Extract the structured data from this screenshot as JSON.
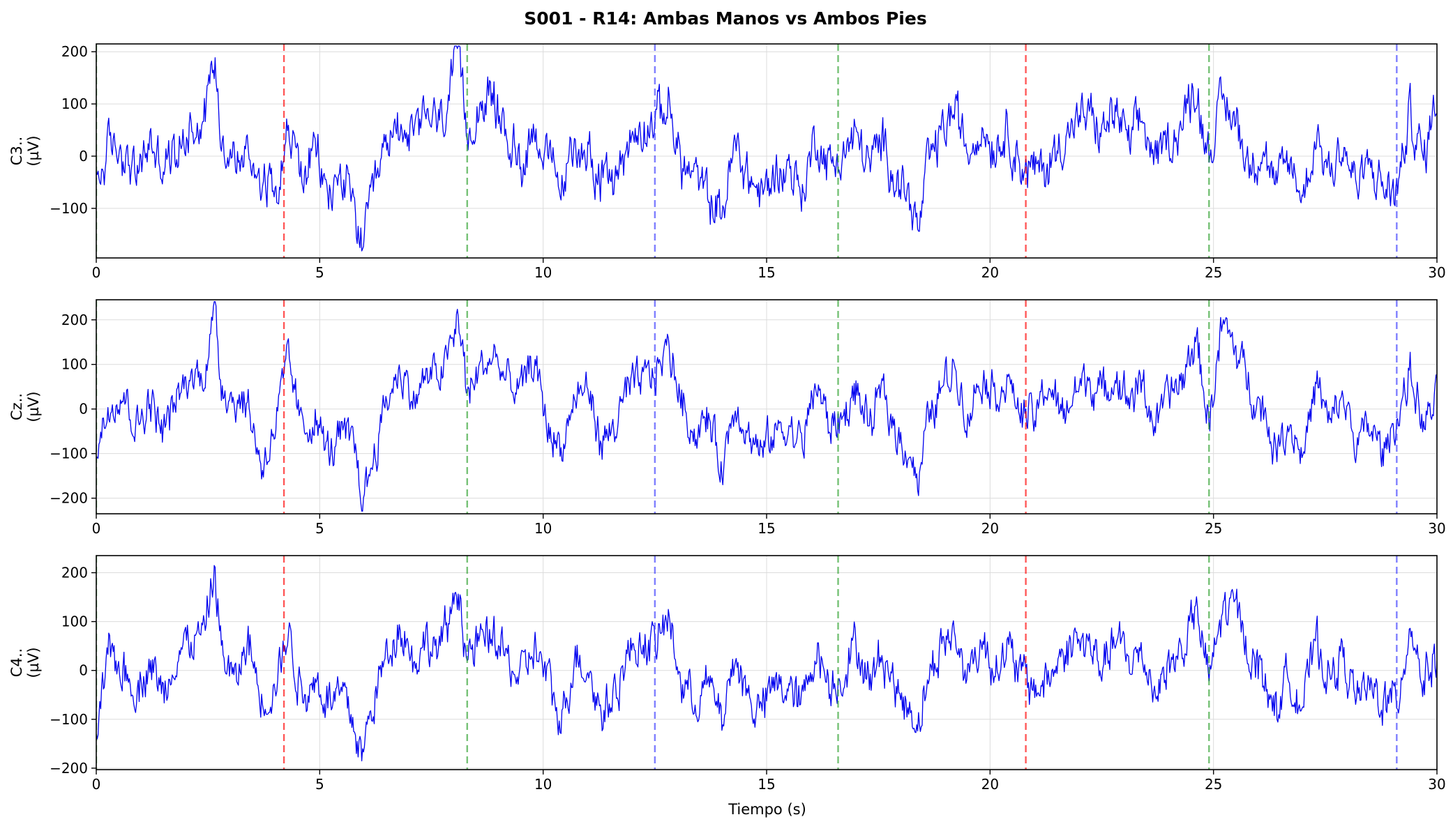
{
  "title": "S001 - R14: Ambas Manos vs Ambos Pies",
  "xlabel": "Tiempo (s)",
  "chart_data": [
    {
      "type": "line",
      "ylabel_channel": "C3..",
      "ylabel_unit": "(µV)",
      "xlim": [
        0,
        30
      ],
      "ylim": [
        -195,
        215
      ],
      "x_ticks": [
        "0",
        "5",
        "10",
        "15",
        "20",
        "25",
        "30"
      ],
      "y_ticks": [
        {
          "value": 200,
          "label": "200"
        },
        {
          "value": 100,
          "label": "100"
        },
        {
          "value": 0,
          "label": "0"
        },
        {
          "value": -100,
          "label": "−100"
        }
      ],
      "grid": true,
      "markers": [
        {
          "x": 0.0,
          "color": "#2ca02c"
        },
        {
          "x": 4.2,
          "color": "#ff0000"
        },
        {
          "x": 8.3,
          "color": "#2ca02c"
        },
        {
          "x": 12.5,
          "color": "#3b3bff"
        },
        {
          "x": 16.6,
          "color": "#2ca02c"
        },
        {
          "x": 20.8,
          "color": "#ff0000"
        },
        {
          "x": 24.9,
          "color": "#2ca02c"
        },
        {
          "x": 29.1,
          "color": "#3b3bff"
        }
      ],
      "series": [
        {
          "color": "#0000ee",
          "x": [
            0,
            0.3,
            0.6,
            0.9,
            1.2,
            1.5,
            1.8,
            2.1,
            2.4,
            2.55,
            2.65,
            2.8,
            3.1,
            3.4,
            3.7,
            4.0,
            4.3,
            4.6,
            4.9,
            5.2,
            5.5,
            5.8,
            5.95,
            6.2,
            6.5,
            6.8,
            7.1,
            7.4,
            7.7,
            8.0,
            8.1,
            8.3,
            8.6,
            8.9,
            9.2,
            9.5,
            9.8,
            10.1,
            10.4,
            10.7,
            11.0,
            11.3,
            11.6,
            11.9,
            12.2,
            12.5,
            12.8,
            13.1,
            13.4,
            13.7,
            14.0,
            14.3,
            14.6,
            14.9,
            15.2,
            15.5,
            15.8,
            16.1,
            16.4,
            16.7,
            17.0,
            17.3,
            17.6,
            17.9,
            18.2,
            18.4,
            18.6,
            18.9,
            19.2,
            19.5,
            19.8,
            20.1,
            20.4,
            20.7,
            21.0,
            21.3,
            21.6,
            21.9,
            22.2,
            22.5,
            22.8,
            23.1,
            23.4,
            23.7,
            24.0,
            24.3,
            24.6,
            24.7,
            24.9,
            25.2,
            25.5,
            25.8,
            26.1,
            26.4,
            26.7,
            27.0,
            27.3,
            27.6,
            27.9,
            28.2,
            28.5,
            28.8,
            29.1,
            29.4,
            29.7,
            30.0
          ],
          "values": [
            -60,
            20,
            10,
            -40,
            30,
            -20,
            10,
            60,
            70,
            150,
            190,
            40,
            -10,
            0,
            -40,
            -60,
            50,
            -40,
            10,
            -80,
            -30,
            -120,
            -170,
            -80,
            20,
            70,
            30,
            80,
            60,
            150,
            190,
            40,
            110,
            100,
            40,
            -20,
            60,
            -10,
            -60,
            10,
            20,
            -50,
            -40,
            20,
            60,
            70,
            100,
            -20,
            -40,
            -80,
            -110,
            20,
            -40,
            -80,
            -30,
            -20,
            -70,
            40,
            -20,
            0,
            40,
            -20,
            30,
            -40,
            -80,
            -150,
            -20,
            40,
            90,
            10,
            60,
            20,
            50,
            -20,
            -30,
            -20,
            30,
            60,
            80,
            40,
            90,
            20,
            70,
            -10,
            30,
            60,
            140,
            80,
            10,
            100,
            70,
            -20,
            20,
            -60,
            -10,
            -80,
            40,
            -30,
            20,
            -60,
            -20,
            -60,
            -70,
            80,
            -10,
            120
          ]
        }
      ]
    },
    {
      "type": "line",
      "ylabel_channel": "Cz..",
      "ylabel_unit": "(µV)",
      "xlim": [
        0,
        30
      ],
      "ylim": [
        -235,
        245
      ],
      "x_ticks": [
        "0",
        "5",
        "10",
        "15",
        "20",
        "25",
        "30"
      ],
      "y_ticks": [
        {
          "value": 200,
          "label": "200"
        },
        {
          "value": 100,
          "label": "100"
        },
        {
          "value": 0,
          "label": "0"
        },
        {
          "value": -100,
          "label": "−100"
        },
        {
          "value": -200,
          "label": "−200"
        }
      ],
      "grid": true,
      "markers": [
        {
          "x": 0.0,
          "color": "#2ca02c"
        },
        {
          "x": 4.2,
          "color": "#ff0000"
        },
        {
          "x": 8.3,
          "color": "#2ca02c"
        },
        {
          "x": 12.5,
          "color": "#3b3bff"
        },
        {
          "x": 16.6,
          "color": "#2ca02c"
        },
        {
          "x": 20.8,
          "color": "#ff0000"
        },
        {
          "x": 24.9,
          "color": "#2ca02c"
        },
        {
          "x": 29.1,
          "color": "#3b3bff"
        }
      ],
      "series": [
        {
          "color": "#0000ee",
          "x": [
            0,
            0.3,
            0.6,
            0.9,
            1.2,
            1.5,
            1.8,
            2.1,
            2.4,
            2.55,
            2.65,
            2.8,
            3.1,
            3.4,
            3.7,
            4.0,
            4.3,
            4.6,
            4.9,
            5.2,
            5.5,
            5.8,
            5.95,
            6.2,
            6.5,
            6.8,
            7.1,
            7.4,
            7.7,
            8.0,
            8.1,
            8.3,
            8.6,
            8.9,
            9.2,
            9.5,
            9.8,
            10.1,
            10.4,
            10.7,
            11.0,
            11.3,
            11.6,
            11.9,
            12.2,
            12.5,
            12.8,
            13.1,
            13.4,
            13.7,
            14.0,
            14.3,
            14.6,
            14.9,
            15.2,
            15.5,
            15.8,
            16.1,
            16.4,
            16.7,
            17.0,
            17.3,
            17.6,
            17.9,
            18.2,
            18.4,
            18.6,
            18.9,
            19.2,
            19.5,
            19.8,
            20.1,
            20.4,
            20.7,
            21.0,
            21.3,
            21.6,
            21.9,
            22.2,
            22.5,
            22.8,
            23.1,
            23.4,
            23.7,
            24.0,
            24.3,
            24.6,
            24.7,
            24.9,
            25.2,
            25.5,
            25.8,
            26.1,
            26.4,
            26.7,
            27.0,
            27.3,
            27.6,
            27.9,
            28.2,
            28.5,
            28.8,
            29.1,
            29.4,
            29.7,
            30.0
          ],
          "values": [
            -100,
            20,
            40,
            -40,
            20,
            -50,
            20,
            70,
            80,
            160,
            220,
            60,
            20,
            10,
            -130,
            -40,
            110,
            -50,
            -20,
            -100,
            -60,
            -90,
            -210,
            -110,
            20,
            90,
            20,
            70,
            80,
            150,
            220,
            30,
            90,
            120,
            60,
            40,
            110,
            -40,
            -90,
            20,
            50,
            -80,
            -40,
            40,
            60,
            80,
            140,
            20,
            -60,
            -20,
            -130,
            20,
            -60,
            -100,
            -50,
            -40,
            -80,
            60,
            -40,
            -20,
            40,
            -40,
            40,
            -60,
            -90,
            -170,
            -30,
            40,
            100,
            -20,
            80,
            40,
            60,
            -10,
            -20,
            60,
            -20,
            40,
            70,
            30,
            80,
            20,
            60,
            -40,
            30,
            60,
            160,
            100,
            -30,
            190,
            130,
            60,
            0,
            -90,
            -30,
            -100,
            60,
            -40,
            30,
            -80,
            -40,
            -100,
            -20,
            80,
            -40,
            20
          ]
        }
      ]
    },
    {
      "type": "line",
      "ylabel_channel": "C4..",
      "ylabel_unit": "(µV)",
      "xlim": [
        0,
        30
      ],
      "ylim": [
        -203,
        235
      ],
      "x_ticks": [
        "0",
        "5",
        "10",
        "15",
        "20",
        "25",
        "30"
      ],
      "y_ticks": [
        {
          "value": 200,
          "label": "200"
        },
        {
          "value": 100,
          "label": "100"
        },
        {
          "value": 0,
          "label": "0"
        },
        {
          "value": -100,
          "label": "−100"
        },
        {
          "value": -200,
          "label": "−200"
        }
      ],
      "grid": true,
      "markers": [
        {
          "x": 0.0,
          "color": "#2ca02c"
        },
        {
          "x": 4.2,
          "color": "#ff0000"
        },
        {
          "x": 8.3,
          "color": "#2ca02c"
        },
        {
          "x": 12.5,
          "color": "#3b3bff"
        },
        {
          "x": 16.6,
          "color": "#2ca02c"
        },
        {
          "x": 20.8,
          "color": "#ff0000"
        },
        {
          "x": 24.9,
          "color": "#2ca02c"
        },
        {
          "x": 29.1,
          "color": "#3b3bff"
        }
      ],
      "series": [
        {
          "color": "#0000ee",
          "x": [
            0,
            0.3,
            0.6,
            0.9,
            1.2,
            1.5,
            1.8,
            2.1,
            2.4,
            2.55,
            2.65,
            2.8,
            3.1,
            3.4,
            3.7,
            4.0,
            4.3,
            4.6,
            4.9,
            5.2,
            5.5,
            5.8,
            5.95,
            6.2,
            6.5,
            6.8,
            7.1,
            7.4,
            7.7,
            8.0,
            8.1,
            8.3,
            8.6,
            8.9,
            9.2,
            9.5,
            9.8,
            10.1,
            10.4,
            10.7,
            11.0,
            11.3,
            11.6,
            11.9,
            12.2,
            12.5,
            12.8,
            13.1,
            13.4,
            13.7,
            14.0,
            14.3,
            14.6,
            14.9,
            15.2,
            15.5,
            15.8,
            16.1,
            16.4,
            16.7,
            17.0,
            17.3,
            17.6,
            17.9,
            18.2,
            18.4,
            18.6,
            18.9,
            19.2,
            19.5,
            19.8,
            20.1,
            20.4,
            20.7,
            21.0,
            21.3,
            21.6,
            21.9,
            22.2,
            22.5,
            22.8,
            23.1,
            23.4,
            23.7,
            24.0,
            24.3,
            24.6,
            24.7,
            24.9,
            25.2,
            25.5,
            25.8,
            26.1,
            26.4,
            26.7,
            27.0,
            27.3,
            27.6,
            27.9,
            28.2,
            28.5,
            28.8,
            29.1,
            29.4,
            29.7,
            30.0
          ],
          "values": [
            -120,
            30,
            0,
            -40,
            20,
            -50,
            40,
            60,
            70,
            150,
            210,
            40,
            -30,
            60,
            -60,
            -30,
            80,
            -50,
            -20,
            -60,
            -50,
            -120,
            -180,
            -60,
            30,
            100,
            20,
            60,
            40,
            140,
            180,
            20,
            60,
            70,
            20,
            -20,
            50,
            -20,
            -110,
            30,
            10,
            -90,
            -40,
            30,
            60,
            50,
            110,
            -30,
            -60,
            -30,
            -100,
            30,
            -60,
            -80,
            -30,
            -40,
            -70,
            50,
            -30,
            -10,
            60,
            -30,
            40,
            -40,
            -80,
            -100,
            -20,
            50,
            70,
            -10,
            60,
            10,
            40,
            -10,
            -40,
            -20,
            30,
            60,
            50,
            10,
            60,
            20,
            30,
            -40,
            10,
            40,
            120,
            80,
            -20,
            120,
            130,
            40,
            -10,
            -80,
            -10,
            -70,
            60,
            -20,
            30,
            -60,
            -40,
            -60,
            -70,
            100,
            -20,
            30
          ]
        }
      ]
    }
  ]
}
